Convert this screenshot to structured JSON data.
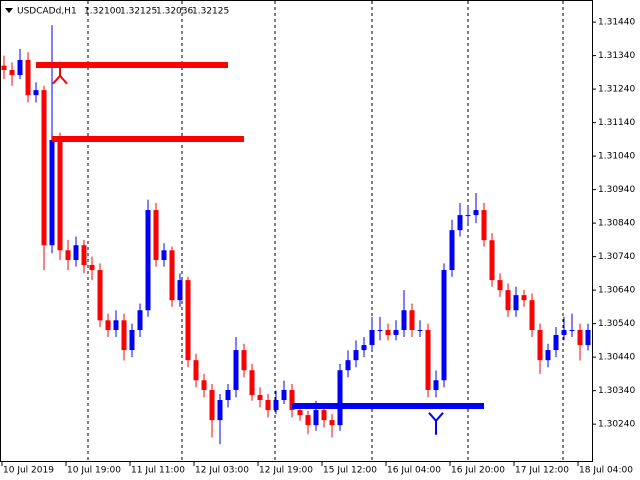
{
  "chart_data": {
    "type": "candlestick",
    "title": "USDCADd,H1",
    "header_quote": [
      "1.32100",
      "1.32125",
      "1.32036",
      "1.32125"
    ],
    "up_color": "#0000ff",
    "down_color": "#ff0000",
    "categories": [
      "10 Jul 2019",
      null,
      null,
      null,
      null,
      null,
      null,
      null,
      "10 Jul 19:00",
      null,
      null,
      null,
      null,
      null,
      null,
      null,
      "11 Jul 11:00",
      null,
      null,
      null,
      null,
      null,
      null,
      null,
      "12 Jul 03:00",
      null,
      null,
      null,
      null,
      null,
      null,
      null,
      "12 Jul 19:00",
      null,
      null,
      null,
      null,
      null,
      null,
      null,
      "15 Jul 12:00",
      null,
      null,
      null,
      null,
      null,
      null,
      null,
      "16 Jul 04:00",
      null,
      null,
      null,
      null,
      null,
      null,
      null,
      "16 Jul 20:00",
      null,
      null,
      null,
      null,
      null,
      null,
      null,
      "17 Jul 12:00",
      null,
      null,
      null,
      null,
      null,
      null,
      null,
      "18 Jul 04:00",
      null
    ],
    "ohlc": [
      [
        1.3131,
        1.3134,
        1.3127,
        1.31297
      ],
      [
        1.31297,
        1.3132,
        1.3125,
        1.31282
      ],
      [
        1.31282,
        1.3136,
        1.3127,
        1.31327
      ],
      [
        1.31327,
        1.3135,
        1.312,
        1.31222
      ],
      [
        1.31222,
        1.3126,
        1.312,
        1.31237
      ],
      [
        1.31237,
        1.3125,
        1.307,
        1.30774
      ],
      [
        1.30774,
        1.31431,
        1.3075,
        1.31088
      ],
      [
        1.31088,
        1.3111,
        1.3073,
        1.30759
      ],
      [
        1.30759,
        1.3079,
        1.307,
        1.3073
      ],
      [
        1.3073,
        1.308,
        1.3071,
        1.30774
      ],
      [
        1.30774,
        1.3079,
        1.3069,
        1.30715
      ],
      [
        1.30715,
        1.3074,
        1.3067,
        1.307
      ],
      [
        1.307,
        1.3072,
        1.3053,
        1.3055
      ],
      [
        1.3055,
        1.3057,
        1.305,
        1.30521
      ],
      [
        1.30521,
        1.3058,
        1.305,
        1.3055
      ],
      [
        1.3055,
        1.3057,
        1.3043,
        1.30461
      ],
      [
        1.30461,
        1.3054,
        1.3044,
        1.30521
      ],
      [
        1.30521,
        1.306,
        1.305,
        1.3058
      ],
      [
        1.3058,
        1.3091,
        1.3056,
        1.30879
      ],
      [
        1.30879,
        1.309,
        1.3071,
        1.3073
      ],
      [
        1.3073,
        1.3078,
        1.3071,
        1.30759
      ],
      [
        1.30759,
        1.3077,
        1.3059,
        1.3061
      ],
      [
        1.3061,
        1.3069,
        1.3059,
        1.3067
      ],
      [
        1.3067,
        1.3068,
        1.3041,
        1.30431
      ],
      [
        1.30431,
        1.3045,
        1.3035,
        1.30371
      ],
      [
        1.30371,
        1.3039,
        1.3032,
        1.30342
      ],
      [
        1.30342,
        1.3036,
        1.302,
        1.30252
      ],
      [
        1.30252,
        1.3033,
        1.3018,
        1.30312
      ],
      [
        1.30312,
        1.3036,
        1.3029,
        1.30342
      ],
      [
        1.30342,
        1.305,
        1.3032,
        1.30461
      ],
      [
        1.30461,
        1.3048,
        1.3038,
        1.30401
      ],
      [
        1.30401,
        1.3042,
        1.3031,
        1.30327
      ],
      [
        1.30327,
        1.3035,
        1.3029,
        1.30312
      ],
      [
        1.30312,
        1.3033,
        1.3026,
        1.30282
      ],
      [
        1.30282,
        1.3034,
        1.3027,
        1.30312
      ],
      [
        1.30312,
        1.3037,
        1.303,
        1.30342
      ],
      [
        1.30342,
        1.3036,
        1.3026,
        1.30282
      ],
      [
        1.30282,
        1.303,
        1.3025,
        1.30267
      ],
      [
        1.30267,
        1.3028,
        1.3021,
        1.30237
      ],
      [
        1.30237,
        1.3031,
        1.3022,
        1.30282
      ],
      [
        1.30282,
        1.303,
        1.3023,
        1.30252
      ],
      [
        1.30252,
        1.3027,
        1.302,
        1.30237
      ],
      [
        1.30237,
        1.3042,
        1.3022,
        1.30401
      ],
      [
        1.30401,
        1.3046,
        1.3038,
        1.30431
      ],
      [
        1.30431,
        1.3049,
        1.3041,
        1.30461
      ],
      [
        1.30461,
        1.305,
        1.3044,
        1.30476
      ],
      [
        1.30476,
        1.3056,
        1.3046,
        1.30521
      ],
      [
        1.30521,
        1.3056,
        1.3049,
        1.30521
      ],
      [
        1.30521,
        1.3054,
        1.3049,
        1.30506
      ],
      [
        1.30506,
        1.3055,
        1.3049,
        1.30521
      ],
      [
        1.30521,
        1.3064,
        1.305,
        1.3058
      ],
      [
        1.3058,
        1.306,
        1.305,
        1.30521
      ],
      [
        1.30521,
        1.3055,
        1.305,
        1.30521
      ],
      [
        1.30521,
        1.3054,
        1.3032,
        1.30342
      ],
      [
        1.30342,
        1.304,
        1.3032,
        1.30371
      ],
      [
        1.30371,
        1.3072,
        1.3035,
        1.307
      ],
      [
        1.307,
        1.3085,
        1.3068,
        1.30819
      ],
      [
        1.30819,
        1.309,
        1.308,
        1.30864
      ],
      [
        1.30864,
        1.3089,
        1.3084,
        1.30864
      ],
      [
        1.30864,
        1.3093,
        1.3084,
        1.30879
      ],
      [
        1.30879,
        1.309,
        1.3077,
        1.30789
      ],
      [
        1.30789,
        1.3081,
        1.3065,
        1.3067
      ],
      [
        1.3067,
        1.3069,
        1.3062,
        1.3064
      ],
      [
        1.3064,
        1.3066,
        1.3056,
        1.3058
      ],
      [
        1.3058,
        1.3065,
        1.3056,
        1.30625
      ],
      [
        1.30625,
        1.3064,
        1.3059,
        1.3061
      ],
      [
        1.3061,
        1.3063,
        1.305,
        1.30521
      ],
      [
        1.30521,
        1.3054,
        1.3039,
        1.30431
      ],
      [
        1.30431,
        1.3048,
        1.3041,
        1.30461
      ],
      [
        1.30461,
        1.3053,
        1.3044,
        1.30506
      ],
      [
        1.30506,
        1.3056,
        1.3049,
        1.30521
      ],
      [
        1.30521,
        1.3057,
        1.305,
        1.30521
      ],
      [
        1.30521,
        1.3054,
        1.3043,
        1.30476
      ],
      [
        1.30476,
        1.3054,
        1.3046,
        1.30521
      ]
    ],
    "levels": [
      {
        "price": 1.31312,
        "start": 4,
        "end": 28,
        "color": "#ff0000"
      },
      {
        "price": 1.31091,
        "start": 6,
        "end": 30,
        "color": "#ff0000"
      },
      {
        "price": 1.30294,
        "start": 36,
        "end": 60,
        "color": "#0000ff"
      }
    ],
    "signals": [
      {
        "index": 7,
        "price": 1.3128,
        "dir": "down",
        "color": "#ff0000"
      },
      {
        "index": 54,
        "price": 1.3025,
        "dir": "up",
        "color": "#0000ff"
      }
    ],
    "ylim": [
      1.30127,
      1.31506
    ],
    "yticks": [
      {
        "value": 1.3144,
        "label": "1.31440"
      },
      {
        "value": 1.3134,
        "label": "1.31340"
      },
      {
        "value": 1.3124,
        "label": "1.31240"
      },
      {
        "value": 1.3114,
        "label": "1.31140"
      },
      {
        "value": 1.3104,
        "label": "1.31040"
      },
      {
        "value": 1.3094,
        "label": "1.30940"
      },
      {
        "value": 1.3084,
        "label": "1.30840"
      },
      {
        "value": 1.3074,
        "label": "1.30740"
      },
      {
        "value": 1.3064,
        "label": "1.30640"
      },
      {
        "value": 1.3054,
        "label": "1.30540"
      },
      {
        "value": 1.3044,
        "label": "1.30440"
      },
      {
        "value": 1.3034,
        "label": "1.30340"
      },
      {
        "value": 1.3024,
        "label": "1.30240"
      }
    ]
  }
}
